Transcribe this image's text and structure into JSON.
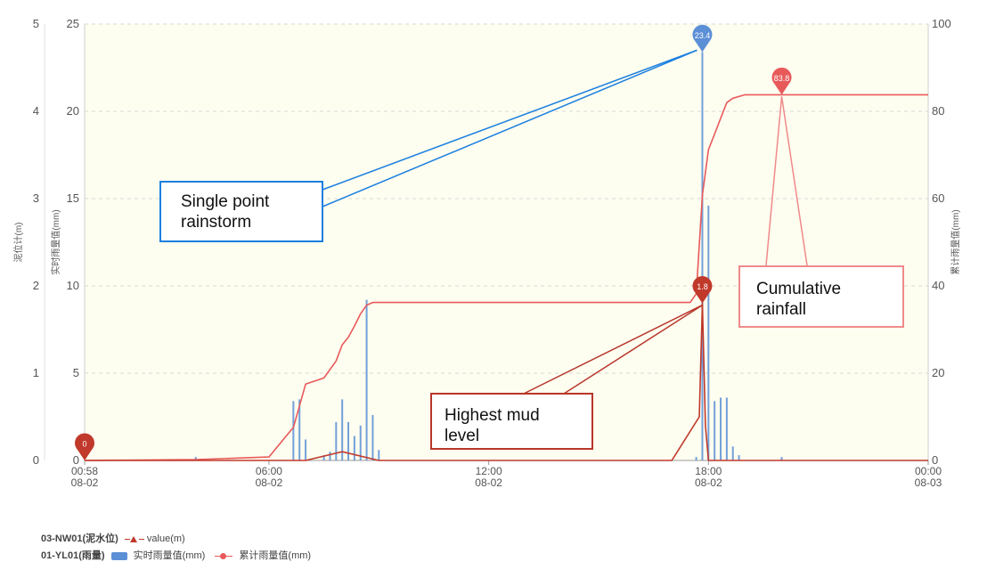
{
  "chart_data": {
    "type": "bar+line",
    "x_ticks": [
      {
        "time": "00:58",
        "date": "08-02"
      },
      {
        "time": "06:00",
        "date": "08-02"
      },
      {
        "time": "12:00",
        "date": "08-02"
      },
      {
        "time": "18:00",
        "date": "08-02"
      },
      {
        "time": "00:00",
        "date": "08-03"
      }
    ],
    "x_range": [
      "08-02 00:58",
      "08-03 00:00"
    ],
    "axes": {
      "mud_level": {
        "label": "泥位计(m)",
        "min": 0,
        "max": 5,
        "ticks": [
          0,
          1,
          2,
          3,
          4,
          5
        ],
        "position": "left-outer"
      },
      "rain_realtime": {
        "label": "实时雨量值(mm)",
        "min": 0,
        "max": 25,
        "ticks": [
          0,
          5,
          10,
          15,
          20,
          25
        ],
        "position": "left-inner"
      },
      "rain_cumulative": {
        "label": "累计雨量值(mm)",
        "min": 0,
        "max": 100,
        "ticks": [
          0,
          20,
          40,
          60,
          80,
          100
        ],
        "position": "right"
      }
    },
    "grid": true,
    "series": [
      {
        "name": "实时雨量值(mm)",
        "group": "01-YL01(雨量)",
        "type": "bar",
        "axis": "rain_realtime",
        "color": "#5b8fd6",
        "data": [
          [
            "08-02 04:00",
            0.2
          ],
          [
            "08-02 06:40",
            3.4
          ],
          [
            "08-02 06:50",
            3.5
          ],
          [
            "08-02 07:00",
            1.2
          ],
          [
            "08-02 07:30",
            0.3
          ],
          [
            "08-02 07:40",
            0.5
          ],
          [
            "08-02 07:50",
            2.2
          ],
          [
            "08-02 08:00",
            3.5
          ],
          [
            "08-02 08:10",
            2.2
          ],
          [
            "08-02 08:20",
            1.4
          ],
          [
            "08-02 08:30",
            2.0
          ],
          [
            "08-02 08:40",
            9.2
          ],
          [
            "08-02 08:50",
            2.6
          ],
          [
            "08-02 09:00",
            0.6
          ],
          [
            "08-02 17:40",
            0.2
          ],
          [
            "08-02 17:50",
            23.4
          ],
          [
            "08-02 18:00",
            14.6
          ],
          [
            "08-02 18:10",
            3.4
          ],
          [
            "08-02 18:20",
            3.6
          ],
          [
            "08-02 18:30",
            3.6
          ],
          [
            "08-02 18:40",
            0.8
          ],
          [
            "08-02 18:50",
            0.3
          ],
          [
            "08-02 20:00",
            0.2
          ]
        ],
        "markers": [
          {
            "label": "23.4",
            "at": [
              "08-02 17:50",
              23.4
            ]
          }
        ]
      },
      {
        "name": "累计雨量值(mm)",
        "group": "01-YL01(雨量)",
        "type": "line",
        "axis": "rain_cumulative",
        "color": "#e85a5a",
        "data": [
          [
            "08-02 00:58",
            0
          ],
          [
            "08-02 04:00",
            0.2
          ],
          [
            "08-02 06:00",
            0.8
          ],
          [
            "08-02 06:40",
            7.6
          ],
          [
            "08-02 07:00",
            17.5
          ],
          [
            "08-02 07:30",
            18.9
          ],
          [
            "08-02 07:50",
            22.8
          ],
          [
            "08-02 08:00",
            26.5
          ],
          [
            "08-02 08:10",
            28.2
          ],
          [
            "08-02 08:20",
            30.8
          ],
          [
            "08-02 08:30",
            33.6
          ],
          [
            "08-02 08:40",
            35.6
          ],
          [
            "08-02 08:50",
            36.2
          ],
          [
            "08-02 17:30",
            36.2
          ],
          [
            "08-02 17:40",
            38.2
          ],
          [
            "08-02 17:50",
            60.8
          ],
          [
            "08-02 18:00",
            71.2
          ],
          [
            "08-02 18:10",
            74.8
          ],
          [
            "08-02 18:20",
            78.4
          ],
          [
            "08-02 18:30",
            82.0
          ],
          [
            "08-02 18:40",
            83.0
          ],
          [
            "08-02 19:00",
            83.8
          ],
          [
            "08-03 00:00",
            83.8
          ]
        ],
        "markers": [
          {
            "label": "83.8",
            "at": [
              "08-02 20:00",
              83.8
            ]
          }
        ]
      },
      {
        "name": "value(m)",
        "group": "03-NW01(泥水位)",
        "type": "line",
        "axis": "mud_level",
        "color": "#c0392b",
        "data": [
          [
            "08-02 00:58",
            0
          ],
          [
            "08-02 07:00",
            0.0
          ],
          [
            "08-02 08:00",
            0.1
          ],
          [
            "08-02 09:00",
            0.0
          ],
          [
            "08-02 17:00",
            0.0
          ],
          [
            "08-02 17:45",
            0.5
          ],
          [
            "08-02 17:50",
            1.8
          ],
          [
            "08-02 17:55",
            0.4
          ],
          [
            "08-02 18:00",
            0.0
          ],
          [
            "08-03 00:00",
            0.0
          ]
        ],
        "markers": [
          {
            "label": "0",
            "at": [
              "08-02 00:58",
              0
            ]
          },
          {
            "label": "1.8",
            "at": [
              "08-02 17:50",
              1.8
            ]
          }
        ]
      }
    ],
    "legend": [
      {
        "group": "03-NW01(泥水位)",
        "items": [
          {
            "label": "value(m)",
            "marker": "triangle-line"
          }
        ]
      },
      {
        "group": "01-YL01(雨量)",
        "items": [
          {
            "label": "实时雨量值(mm)",
            "marker": "bar"
          },
          {
            "label": "累计雨量值(mm)",
            "marker": "circle-line"
          }
        ]
      }
    ],
    "legend_position": "bottom-left",
    "annotations": [
      {
        "text": "Single point rainstorm",
        "points_to": "实时雨量值(mm) peak 23.4"
      },
      {
        "text": "Cumulative rainfall",
        "points_to": "累计雨量值(mm) 83.8"
      },
      {
        "text": "Highest mud level",
        "points_to": "value(m) peak 1.8"
      }
    ]
  },
  "colors": {
    "plot_background": "#fdfdf0",
    "rain_bar": "#5b8fd6",
    "cumulative_line": "#e85a5a",
    "mud_line": "#c0392b",
    "callout_blue": "#1a7fe0",
    "callout_pink": "#f08a8a",
    "callout_darkred": "#b8362a"
  }
}
